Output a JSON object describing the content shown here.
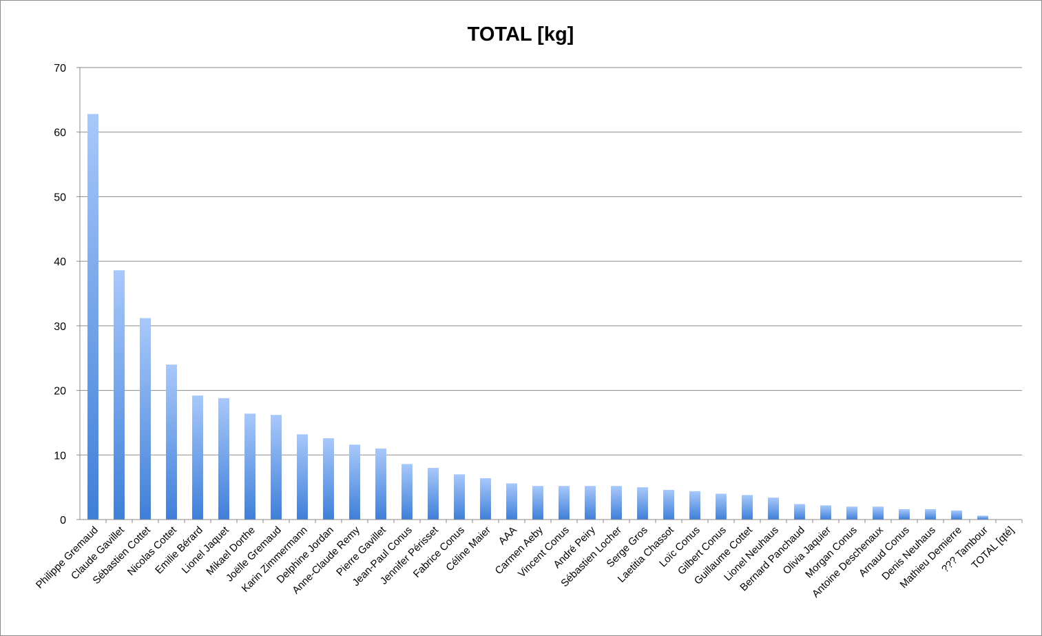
{
  "chart_data": {
    "type": "bar",
    "title": "TOTAL [kg]",
    "xlabel": "",
    "ylabel": "",
    "ylim": [
      0,
      70
    ],
    "yticks": [
      "0",
      "10",
      "20",
      "30",
      "40",
      "50",
      "60",
      "70"
    ],
    "grid": true,
    "legend": "none",
    "bar_color_top": "#a8c8fa",
    "bar_color_bottom": "#3f7fd8",
    "categories": [
      "Philippe Gremaud",
      "Claude Gavillet",
      "Sébastien Cottet",
      "Nicolas Cottet",
      "Emilie Bérard",
      "Lionel Jaquet",
      "Mikael Dorthe",
      "Joëlle Gremaud",
      "Karin Zimmermann",
      "Delphine Jordan",
      "Anne-Claude Remy",
      "Pierre Gavillet",
      "Jean-Paul Conus",
      "Jennifer Périsset",
      "Fabrice Conus",
      "Céline Maier",
      "AAA",
      "Carmen Aeby",
      "Vincent Conus",
      "André Peiry",
      "Sébastien Locher",
      "Serge Gros",
      "Laetitia Chassot",
      "Loïc Conus",
      "Gilbert Conus",
      "Guillaume Cottet",
      "Lionel Neuhaus",
      "Bernard Panchaud",
      "Olivia Jaquier",
      "Morgan Conus",
      "Antoine Deschenaux",
      "Arnaud Conus",
      "Denis Neuhaus",
      "Mathieu Demierre",
      "??? Tambour",
      "TOTAL [qté]"
    ],
    "values": [
      62.8,
      38.6,
      31.2,
      24.0,
      19.2,
      18.8,
      16.4,
      16.2,
      13.2,
      12.6,
      11.6,
      11.0,
      8.6,
      8.0,
      7.0,
      6.4,
      5.6,
      5.2,
      5.2,
      5.2,
      5.2,
      5.0,
      4.6,
      4.4,
      4.0,
      3.8,
      3.4,
      2.4,
      2.2,
      2.0,
      2.0,
      1.6,
      1.6,
      1.4,
      0.6,
      0
    ]
  }
}
